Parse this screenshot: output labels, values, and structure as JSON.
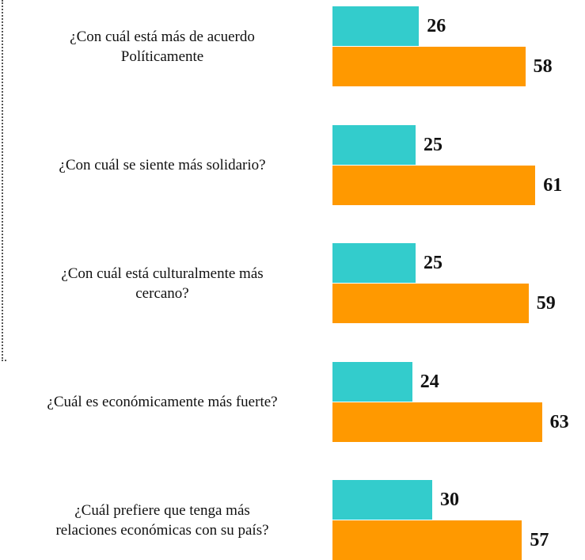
{
  "chart_data": {
    "type": "bar",
    "orientation": "horizontal",
    "categories": [
      [
        "¿Con cuál está más de acuerdo",
        "Políticamente"
      ],
      [
        "¿Con cuál se siente más solidario?"
      ],
      [
        "¿Con cuál está culturalmente más",
        "cercano?"
      ],
      [
        "¿Cuál es económicamente más fuerte?"
      ],
      [
        "¿Cuál prefiere que tenga más",
        "relaciones económicas con su país?"
      ]
    ],
    "series": [
      {
        "color": "#33cccc",
        "values": [
          26,
          25,
          25,
          24,
          30
        ]
      },
      {
        "color": "#ff9900",
        "values": [
          58,
          61,
          59,
          63,
          57
        ]
      }
    ]
  }
}
